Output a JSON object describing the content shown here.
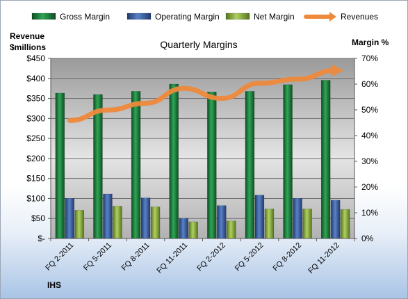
{
  "chart_data": {
    "type": "bar",
    "title": "Quarterly Margins",
    "ylabel_left": [
      "Revenue",
      "$millions"
    ],
    "ylabel_right": "Margin %",
    "categories": [
      "FQ 2-2011",
      "FQ 5-2011",
      "FQ 8-2011",
      "FQ 11-2011",
      "FQ 2-2012",
      "FQ 5-2012",
      "FQ 8-2012",
      "FQ 11-2012"
    ],
    "left_axis": {
      "ylim": [
        0,
        450
      ],
      "ticks": [
        "$-",
        "$50",
        "$100",
        "$150",
        "$200",
        "$250",
        "$300",
        "$350",
        "$400",
        "$450"
      ]
    },
    "right_axis": {
      "ylim": [
        0,
        70
      ],
      "ticks": [
        "0%",
        "10%",
        "20%",
        "30%",
        "40%",
        "50%",
        "60%",
        "70%"
      ]
    },
    "series": [
      {
        "name": "Gross Margin",
        "axis": "right",
        "type": "bar",
        "color": "#1e7a3c",
        "values": [
          56.5,
          56,
          57.2,
          60,
          57,
          57.2,
          59.8,
          61.5
        ]
      },
      {
        "name": "Operating Margin",
        "axis": "right",
        "type": "bar",
        "color": "#3d5e9e",
        "values": [
          15.6,
          17.3,
          15.8,
          7.9,
          12.8,
          16.9,
          15.6,
          14.9
        ]
      },
      {
        "name": "Net Margin",
        "axis": "right",
        "type": "bar",
        "color": "#8cac3e",
        "values": [
          11,
          12.6,
          12.3,
          6.5,
          6.8,
          11.5,
          11.5,
          11.3
        ]
      },
      {
        "name": "Revenues",
        "axis": "left",
        "type": "line",
        "color": "#ee8a3c",
        "values": [
          295,
          321,
          338,
          375,
          350,
          388,
          398,
          420
        ]
      }
    ],
    "legend_position": "top",
    "grid": true
  },
  "source": "IHS"
}
